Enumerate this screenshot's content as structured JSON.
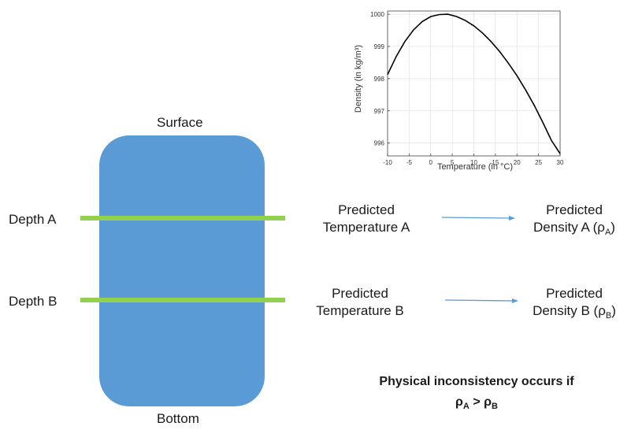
{
  "diagram": {
    "surface_label": "Surface",
    "bottom_label": "Bottom",
    "depth_a_label": "Depth A",
    "depth_b_label": "Depth B",
    "row_a": {
      "temp_line1": "Predicted",
      "temp_line2": "Temperature A",
      "density_line1": "Predicted",
      "density_line2_prefix": "Density A (ρ",
      "density_sub": "A",
      "density_suffix": ")"
    },
    "row_b": {
      "temp_line1": "Predicted",
      "temp_line2": "Temperature B",
      "density_line1": "Predicted",
      "density_line2_prefix": "Density B (ρ",
      "density_sub": "B",
      "density_suffix": ")"
    },
    "conclusion_line1": "Physical inconsistency occurs if",
    "conclusion_rho_a": "ρ",
    "conclusion_sub_a": "A",
    "conclusion_gt": " > ",
    "conclusion_rho_b": "ρ",
    "conclusion_sub_b": "B",
    "colors": {
      "lake": "#5b9bd5",
      "depth_line": "#92d050",
      "arrow": "#5b9bd5"
    }
  },
  "chart_data": {
    "type": "line",
    "xlabel": "Temperature (in °C)",
    "ylabel": "Density (in kg/m³)",
    "xlim": [
      -10,
      30
    ],
    "ylim": [
      995.6,
      1000.1
    ],
    "x_ticks": [
      "-10",
      "-5",
      "0",
      "5",
      "10",
      "15",
      "20",
      "25",
      "30"
    ],
    "y_ticks": [
      "996",
      "997",
      "998",
      "999",
      "1000"
    ],
    "grid": true,
    "series": [
      {
        "x": [
          -10,
          -8,
          -6,
          -4,
          -2,
          0,
          2,
          4,
          6,
          8,
          10,
          12,
          14,
          16,
          18,
          20,
          22,
          24,
          26,
          28,
          30
        ],
        "y": [
          998.13,
          998.69,
          999.15,
          999.51,
          999.77,
          999.93,
          999.99,
          1000.0,
          999.93,
          999.81,
          999.64,
          999.42,
          999.15,
          998.84,
          998.48,
          998.09,
          997.65,
          997.17,
          996.64,
          996.08,
          995.67
        ]
      }
    ],
    "color": "#000000"
  }
}
